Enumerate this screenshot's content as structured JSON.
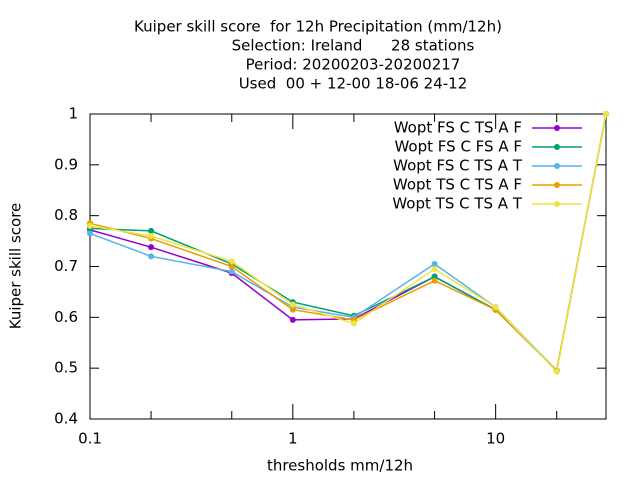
{
  "chart_data": {
    "type": "line",
    "title": "Kuiper skill score  for 12h Precipitation (mm/12h)",
    "subtitle": [
      "Selection: Ireland      28 stations",
      "Period: 20200203-20200217",
      "Used  00 + 12-00 18-06 24-12"
    ],
    "x_label": "thresholds mm/12h",
    "y_label": "Kuiper skill score",
    "x": [
      0.1,
      0.2,
      0.5,
      1,
      2,
      5,
      10,
      20,
      35
    ],
    "xscale": "log",
    "xlim": [
      0.1,
      35
    ],
    "xticks": [
      0.1,
      1,
      10
    ],
    "xminorticks": [
      0.2,
      0.5,
      2,
      5,
      20
    ],
    "ylim": [
      0.4,
      1
    ],
    "yticks": [
      0.4,
      0.5,
      0.6,
      0.7,
      0.8,
      0.9,
      1
    ],
    "grid": false,
    "legend": "top-right",
    "series": [
      {
        "name": "Wopt FS C TS A F",
        "color": "#9400d3",
        "values": [
          0.772,
          0.738,
          0.687,
          0.595,
          0.597,
          0.68,
          0.615,
          0.495,
          1
        ]
      },
      {
        "name": "Wopt FS C FS A F",
        "color": "#009e73",
        "values": [
          0.775,
          0.77,
          0.705,
          0.63,
          0.603,
          0.68,
          0.615,
          0.495,
          1
        ]
      },
      {
        "name": "Wopt FS C TS A T",
        "color": "#56b4e9",
        "values": [
          0.765,
          0.72,
          0.69,
          0.62,
          0.6,
          0.705,
          0.62,
          0.495,
          1
        ]
      },
      {
        "name": "Wopt TS C TS A F",
        "color": "#e69f00",
        "values": [
          0.785,
          0.755,
          0.7,
          0.615,
          0.595,
          0.672,
          0.615,
          0.495,
          1
        ]
      },
      {
        "name": "Wopt TS C TS A T",
        "color": "#f0e442",
        "values": [
          0.78,
          0.76,
          0.71,
          0.625,
          0.588,
          0.695,
          0.62,
          0.493,
          1
        ]
      }
    ]
  }
}
